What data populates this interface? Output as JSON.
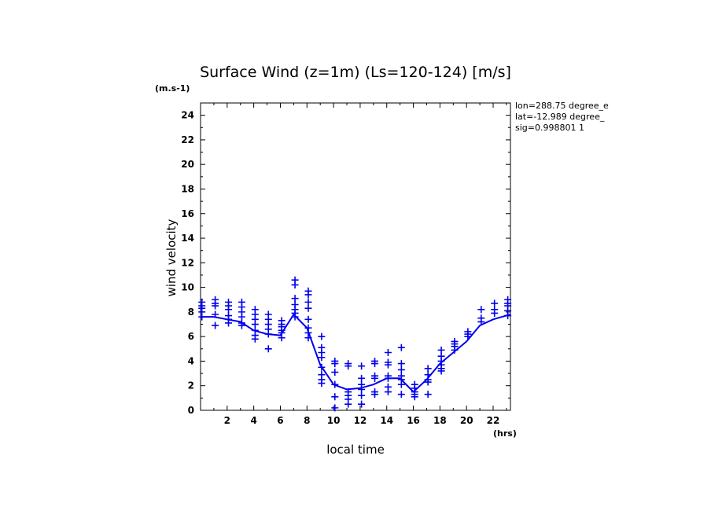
{
  "chart_data": {
    "type": "scatter",
    "title": "Surface Wind (z=1m) (Ls=120-124) [m/s]",
    "ylabel": "wind velocity",
    "y_unit": "(m.s-1)",
    "xlabel": "local time",
    "x_unit": "(hrs)",
    "xlim": [
      0,
      23.3
    ],
    "ylim": [
      0,
      25
    ],
    "x_ticks": [
      2,
      4,
      6,
      8,
      10,
      12,
      14,
      16,
      18,
      20,
      22
    ],
    "y_ticks": [
      0,
      2,
      4,
      6,
      8,
      10,
      12,
      14,
      16,
      18,
      20,
      22,
      24
    ],
    "info_lines": [
      "lon=288.75 degree_e",
      "lat=-12.989 degree_",
      "sig=0.998801 1"
    ],
    "colors": {
      "series": "#0000ee",
      "axes": "#000000"
    },
    "series": [
      {
        "type": "line",
        "points": [
          [
            0,
            7.6
          ],
          [
            1,
            7.6
          ],
          [
            2,
            7.4
          ],
          [
            3,
            7.2
          ],
          [
            4,
            6.5
          ],
          [
            5,
            6.2
          ],
          [
            6,
            6.1
          ],
          [
            7,
            7.8
          ],
          [
            8,
            6.7
          ],
          [
            9,
            3.7
          ],
          [
            10,
            2.1
          ],
          [
            11,
            1.7
          ],
          [
            12,
            1.8
          ],
          [
            13,
            2.1
          ],
          [
            14,
            2.6
          ],
          [
            15,
            2.6
          ],
          [
            16,
            1.5
          ],
          [
            17,
            2.5
          ],
          [
            18,
            3.8
          ],
          [
            19,
            4.7
          ],
          [
            20,
            5.6
          ],
          [
            21,
            6.9
          ],
          [
            22,
            7.4
          ],
          [
            23.3,
            7.8
          ]
        ]
      },
      {
        "type": "scatter",
        "marker": "plus",
        "points": [
          [
            0.1,
            8.8
          ],
          [
            0.1,
            8.5
          ],
          [
            0.1,
            8.3
          ],
          [
            0.1,
            8.0
          ],
          [
            0.1,
            7.6
          ],
          [
            1.1,
            9.0
          ],
          [
            1.1,
            8.7
          ],
          [
            1.1,
            8.5
          ],
          [
            1.1,
            7.8
          ],
          [
            1.1,
            6.9
          ],
          [
            2.1,
            8.8
          ],
          [
            2.1,
            8.5
          ],
          [
            2.1,
            8.2
          ],
          [
            2.1,
            7.7
          ],
          [
            2.1,
            7.4
          ],
          [
            2.1,
            7.1
          ],
          [
            3.1,
            8.8
          ],
          [
            3.1,
            8.4
          ],
          [
            3.1,
            8.0
          ],
          [
            3.1,
            7.6
          ],
          [
            3.1,
            7.1
          ],
          [
            3.1,
            6.9
          ],
          [
            4.1,
            8.2
          ],
          [
            4.1,
            7.8
          ],
          [
            4.1,
            7.4
          ],
          [
            4.1,
            7.0
          ],
          [
            4.1,
            6.5
          ],
          [
            4.1,
            6.1
          ],
          [
            4.1,
            5.8
          ],
          [
            5.1,
            7.8
          ],
          [
            5.1,
            7.4
          ],
          [
            5.1,
            7.0
          ],
          [
            5.1,
            6.6
          ],
          [
            5.1,
            6.2
          ],
          [
            5.1,
            5.0
          ],
          [
            6.1,
            7.3
          ],
          [
            6.1,
            7.0
          ],
          [
            6.1,
            6.8
          ],
          [
            6.1,
            6.5
          ],
          [
            6.1,
            6.3
          ],
          [
            6.1,
            5.9
          ],
          [
            7.1,
            10.6
          ],
          [
            7.1,
            10.2
          ],
          [
            7.1,
            9.1
          ],
          [
            7.1,
            8.6
          ],
          [
            7.1,
            8.2
          ],
          [
            7.1,
            7.9
          ],
          [
            7.1,
            7.6
          ],
          [
            8.1,
            9.7
          ],
          [
            8.1,
            9.4
          ],
          [
            8.1,
            8.8
          ],
          [
            8.1,
            8.3
          ],
          [
            8.1,
            7.4
          ],
          [
            8.1,
            6.7
          ],
          [
            8.1,
            6.3
          ],
          [
            8.1,
            5.9
          ],
          [
            9.1,
            6.0
          ],
          [
            9.1,
            5.1
          ],
          [
            9.1,
            4.7
          ],
          [
            9.1,
            4.3
          ],
          [
            9.1,
            3.5
          ],
          [
            9.1,
            2.9
          ],
          [
            9.1,
            2.5
          ],
          [
            9.1,
            2.2
          ],
          [
            10.1,
            4.0
          ],
          [
            10.1,
            3.8
          ],
          [
            10.1,
            3.1
          ],
          [
            10.1,
            2.1
          ],
          [
            10.1,
            1.1
          ],
          [
            10.1,
            0.2
          ],
          [
            11.1,
            3.8
          ],
          [
            11.1,
            3.6
          ],
          [
            11.1,
            1.5
          ],
          [
            11.1,
            1.2
          ],
          [
            11.1,
            0.9
          ],
          [
            11.1,
            0.5
          ],
          [
            12.1,
            3.6
          ],
          [
            12.1,
            2.6
          ],
          [
            12.1,
            2.1
          ],
          [
            12.1,
            1.7
          ],
          [
            12.1,
            1.2
          ],
          [
            12.1,
            0.5
          ],
          [
            13.1,
            4.0
          ],
          [
            13.1,
            3.8
          ],
          [
            13.1,
            2.8
          ],
          [
            13.1,
            2.6
          ],
          [
            13.1,
            1.5
          ],
          [
            13.1,
            1.3
          ],
          [
            14.1,
            4.7
          ],
          [
            14.1,
            3.9
          ],
          [
            14.1,
            3.7
          ],
          [
            14.1,
            2.8
          ],
          [
            14.1,
            2.6
          ],
          [
            14.1,
            1.9
          ],
          [
            14.1,
            1.5
          ],
          [
            15.1,
            5.1
          ],
          [
            15.1,
            3.8
          ],
          [
            15.1,
            3.3
          ],
          [
            15.1,
            2.8
          ],
          [
            15.1,
            2.5
          ],
          [
            15.1,
            2.1
          ],
          [
            15.1,
            1.3
          ],
          [
            16.1,
            2.1
          ],
          [
            16.1,
            1.8
          ],
          [
            16.1,
            1.5
          ],
          [
            16.1,
            1.3
          ],
          [
            16.1,
            1.1
          ],
          [
            17.1,
            3.4
          ],
          [
            17.1,
            2.9
          ],
          [
            17.1,
            2.5
          ],
          [
            17.1,
            2.3
          ],
          [
            17.1,
            1.3
          ],
          [
            18.1,
            4.9
          ],
          [
            18.1,
            4.4
          ],
          [
            18.1,
            4.0
          ],
          [
            18.1,
            3.7
          ],
          [
            18.1,
            3.4
          ],
          [
            18.1,
            3.2
          ],
          [
            19.1,
            5.6
          ],
          [
            19.1,
            5.4
          ],
          [
            19.1,
            5.2
          ],
          [
            19.1,
            4.9
          ],
          [
            20.1,
            6.4
          ],
          [
            20.1,
            6.2
          ],
          [
            20.1,
            6.0
          ],
          [
            21.1,
            8.2
          ],
          [
            21.1,
            7.5
          ],
          [
            21.1,
            7.2
          ],
          [
            22.1,
            8.7
          ],
          [
            22.1,
            8.2
          ],
          [
            22.1,
            7.9
          ],
          [
            23.1,
            9.0
          ],
          [
            23.1,
            8.7
          ],
          [
            23.1,
            8.5
          ],
          [
            23.1,
            8.1
          ],
          [
            23.1,
            7.7
          ]
        ]
      }
    ]
  }
}
